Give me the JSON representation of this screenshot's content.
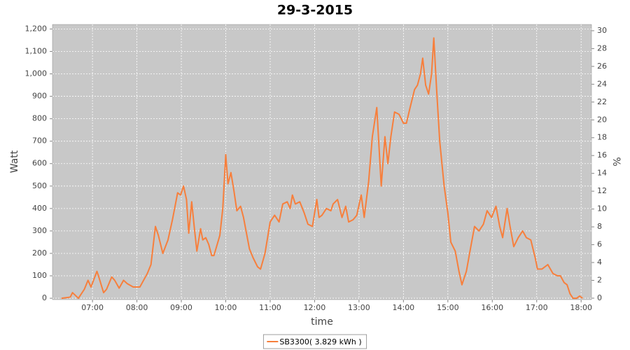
{
  "chart_data": {
    "type": "line",
    "title": "29-3-2015",
    "x_label": "time",
    "y_label": "Watt",
    "y2_label": "%",
    "x": [
      "06:18",
      "06:30",
      "06:33",
      "06:41",
      "06:49",
      "06:54",
      "06:58",
      "07:06",
      "07:09",
      "07:15",
      "07:19",
      "07:26",
      "07:30",
      "07:36",
      "07:42",
      "07:47",
      "07:55",
      "08:04",
      "08:14",
      "08:19",
      "08:25",
      "08:29",
      "08:35",
      "08:42",
      "08:48",
      "08:55",
      "08:59",
      "09:03",
      "09:07",
      "09:10",
      "09:14",
      "09:18",
      "09:21",
      "09:26",
      "09:29",
      "09:33",
      "09:37",
      "09:41",
      "09:44",
      "09:52",
      "09:56",
      "10:00",
      "10:03",
      "10:07",
      "10:11",
      "10:15",
      "10:20",
      "10:24",
      "10:32",
      "10:37",
      "10:43",
      "10:47",
      "10:53",
      "11:00",
      "11:06",
      "11:12",
      "11:17",
      "11:23",
      "11:27",
      "11:30",
      "11:34",
      "11:40",
      "11:46",
      "11:51",
      "11:57",
      "12:03",
      "12:06",
      "12:10",
      "12:16",
      "12:22",
      "12:25",
      "12:31",
      "12:37",
      "12:42",
      "12:46",
      "12:52",
      "12:57",
      "13:03",
      "13:07",
      "13:13",
      "13:18",
      "13:24",
      "13:30",
      "13:35",
      "13:39",
      "13:43",
      "13:48",
      "13:54",
      "14:00",
      "14:04",
      "14:09",
      "14:15",
      "14:19",
      "14:23",
      "14:26",
      "14:30",
      "14:34",
      "14:38",
      "14:41",
      "14:45",
      "14:49",
      "14:55",
      "15:00",
      "15:04",
      "15:10",
      "15:15",
      "15:19",
      "15:25",
      "15:31",
      "15:36",
      "15:42",
      "15:48",
      "15:53",
      "15:59",
      "16:05",
      "16:10",
      "16:14",
      "16:20",
      "16:24",
      "16:29",
      "16:35",
      "16:41",
      "16:46",
      "16:52",
      "16:58",
      "17:01",
      "17:07",
      "17:15",
      "17:22",
      "17:28",
      "17:32",
      "17:37",
      "17:41",
      "17:45",
      "17:49",
      "17:54",
      "17:58",
      "18:02"
    ],
    "series": [
      {
        "name": "SB3300( 3.829 kWh )",
        "color": "#f77f3c",
        "values": [
          0,
          5,
          25,
          0,
          40,
          80,
          50,
          120,
          90,
          25,
          40,
          95,
          80,
          45,
          80,
          65,
          50,
          50,
          110,
          150,
          320,
          280,
          200,
          260,
          350,
          470,
          460,
          500,
          440,
          290,
          430,
          300,
          210,
          310,
          260,
          270,
          240,
          190,
          190,
          280,
          400,
          640,
          510,
          560,
          480,
          390,
          410,
          360,
          220,
          180,
          140,
          130,
          200,
          340,
          370,
          340,
          420,
          430,
          400,
          460,
          420,
          430,
          380,
          330,
          320,
          440,
          360,
          370,
          400,
          390,
          420,
          440,
          360,
          410,
          340,
          350,
          370,
          460,
          360,
          520,
          720,
          850,
          500,
          720,
          600,
          720,
          830,
          820,
          780,
          780,
          850,
          930,
          950,
          1000,
          1070,
          950,
          910,
          1000,
          1160,
          920,
          700,
          500,
          380,
          250,
          210,
          120,
          60,
          120,
          230,
          320,
          300,
          330,
          390,
          360,
          410,
          320,
          270,
          400,
          320,
          230,
          270,
          300,
          270,
          260,
          180,
          130,
          130,
          150,
          110,
          100,
          100,
          70,
          60,
          20,
          0,
          0,
          10,
          0
        ]
      }
    ],
    "xlim": [
      "06:06",
      "18:14"
    ],
    "xticks": [
      "07:00",
      "08:00",
      "09:00",
      "10:00",
      "11:00",
      "12:00",
      "13:00",
      "14:00",
      "15:00",
      "16:00",
      "17:00",
      "18:00"
    ],
    "ylim": [
      -6,
      1220
    ],
    "yticks": [
      0,
      100,
      200,
      300,
      400,
      500,
      600,
      700,
      800,
      900,
      {
        "value": 1000,
        "label": "1,000"
      },
      {
        "value": 1100,
        "label": "1,100"
      },
      {
        "value": 1200,
        "label": "1,200"
      }
    ],
    "y2lim": [
      -0.16,
      30.7
    ],
    "y2ticks": [
      0,
      2,
      4,
      6,
      8,
      10,
      12,
      14,
      16,
      18,
      20,
      22,
      24,
      26,
      28,
      30
    ],
    "grid": true,
    "legend": "bottom",
    "plot_background": "#c8c8c8"
  }
}
